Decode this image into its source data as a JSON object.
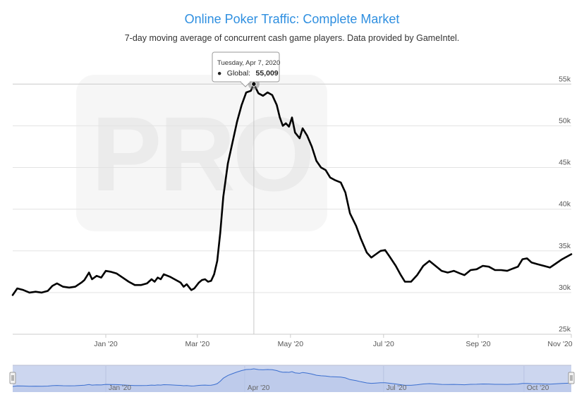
{
  "chart_data": {
    "type": "line",
    "title": "Online Poker Traffic: Complete Market",
    "subtitle": "7-day moving average of concurrent cash game players. Data provided by GameIntel.",
    "watermark": "PRO",
    "ylim": [
      25000,
      59000
    ],
    "y_ticks": [
      {
        "value": 25000,
        "label": "25k"
      },
      {
        "value": 30000,
        "label": "30k"
      },
      {
        "value": 35000,
        "label": "35k"
      },
      {
        "value": 40000,
        "label": "40k"
      },
      {
        "value": 45000,
        "label": "45k"
      },
      {
        "value": 50000,
        "label": "50k"
      },
      {
        "value": 55000,
        "label": "55k"
      }
    ],
    "x_range": [
      "2019-11-01",
      "2020-11-01"
    ],
    "x_ticks": [
      {
        "date": "2020-01-01",
        "label": "Jan '20"
      },
      {
        "date": "2020-03-01",
        "label": "Mar '20"
      },
      {
        "date": "2020-05-01",
        "label": "May '20"
      },
      {
        "date": "2020-07-01",
        "label": "Jul '20"
      },
      {
        "date": "2020-09-01",
        "label": "Sep '20"
      },
      {
        "date": "2020-11-01",
        "label": "Nov '20"
      }
    ],
    "series": [
      {
        "name": "Global",
        "color": "#000000",
        "points": [
          [
            "2019-11-01",
            29700
          ],
          [
            "2019-11-04",
            30500
          ],
          [
            "2019-11-08",
            30300
          ],
          [
            "2019-11-12",
            30000
          ],
          [
            "2019-11-16",
            30100
          ],
          [
            "2019-11-20",
            30000
          ],
          [
            "2019-11-24",
            30200
          ],
          [
            "2019-11-27",
            30800
          ],
          [
            "2019-11-30",
            31100
          ],
          [
            "2019-12-04",
            30700
          ],
          [
            "2019-12-08",
            30600
          ],
          [
            "2019-12-12",
            30700
          ],
          [
            "2019-12-16",
            31200
          ],
          [
            "2019-12-18",
            31500
          ],
          [
            "2019-12-21",
            32400
          ],
          [
            "2019-12-23",
            31600
          ],
          [
            "2019-12-26",
            32000
          ],
          [
            "2019-12-29",
            31800
          ],
          [
            "2020-01-01",
            32600
          ],
          [
            "2020-01-04",
            32500
          ],
          [
            "2020-01-08",
            32300
          ],
          [
            "2020-01-12",
            31800
          ],
          [
            "2020-01-16",
            31300
          ],
          [
            "2020-01-20",
            30900
          ],
          [
            "2020-01-24",
            30900
          ],
          [
            "2020-01-28",
            31100
          ],
          [
            "2020-01-31",
            31600
          ],
          [
            "2020-02-02",
            31300
          ],
          [
            "2020-02-04",
            31800
          ],
          [
            "2020-02-06",
            31600
          ],
          [
            "2020-02-08",
            32200
          ],
          [
            "2020-02-12",
            31900
          ],
          [
            "2020-02-16",
            31500
          ],
          [
            "2020-02-19",
            31200
          ],
          [
            "2020-02-21",
            30700
          ],
          [
            "2020-02-23",
            31000
          ],
          [
            "2020-02-26",
            30300
          ],
          [
            "2020-02-28",
            30500
          ],
          [
            "2020-03-02",
            31200
          ],
          [
            "2020-03-04",
            31500
          ],
          [
            "2020-03-06",
            31600
          ],
          [
            "2020-03-08",
            31300
          ],
          [
            "2020-03-10",
            31400
          ],
          [
            "2020-03-12",
            32200
          ],
          [
            "2020-03-14",
            33800
          ],
          [
            "2020-03-16",
            37200
          ],
          [
            "2020-03-18",
            41500
          ],
          [
            "2020-03-21",
            45500
          ],
          [
            "2020-03-24",
            48000
          ],
          [
            "2020-03-27",
            50500
          ],
          [
            "2020-03-30",
            52500
          ],
          [
            "2020-04-02",
            54000
          ],
          [
            "2020-04-05",
            54200
          ],
          [
            "2020-04-07",
            55009
          ],
          [
            "2020-04-10",
            53900
          ],
          [
            "2020-04-13",
            53600
          ],
          [
            "2020-04-16",
            54000
          ],
          [
            "2020-04-19",
            53700
          ],
          [
            "2020-04-22",
            52500
          ],
          [
            "2020-04-24",
            51000
          ],
          [
            "2020-04-26",
            50000
          ],
          [
            "2020-04-28",
            50300
          ],
          [
            "2020-04-30",
            49900
          ],
          [
            "2020-05-02",
            51000
          ],
          [
            "2020-05-04",
            49200
          ],
          [
            "2020-05-07",
            48500
          ],
          [
            "2020-05-09",
            49700
          ],
          [
            "2020-05-12",
            48800
          ],
          [
            "2020-05-15",
            47500
          ],
          [
            "2020-05-18",
            45800
          ],
          [
            "2020-05-21",
            45000
          ],
          [
            "2020-05-24",
            44700
          ],
          [
            "2020-05-27",
            43800
          ],
          [
            "2020-05-30",
            43500
          ],
          [
            "2020-06-03",
            43200
          ],
          [
            "2020-06-06",
            42000
          ],
          [
            "2020-06-09",
            39500
          ],
          [
            "2020-06-13",
            38000
          ],
          [
            "2020-06-16",
            36500
          ],
          [
            "2020-06-20",
            34800
          ],
          [
            "2020-06-23",
            34200
          ],
          [
            "2020-06-26",
            34600
          ],
          [
            "2020-06-29",
            35000
          ],
          [
            "2020-07-02",
            35100
          ],
          [
            "2020-07-05",
            34300
          ],
          [
            "2020-07-09",
            33200
          ],
          [
            "2020-07-12",
            32200
          ],
          [
            "2020-07-15",
            31300
          ],
          [
            "2020-07-19",
            31300
          ],
          [
            "2020-07-23",
            32100
          ],
          [
            "2020-07-27",
            33200
          ],
          [
            "2020-07-31",
            33800
          ],
          [
            "2020-08-04",
            33200
          ],
          [
            "2020-08-08",
            32600
          ],
          [
            "2020-08-12",
            32400
          ],
          [
            "2020-08-16",
            32600
          ],
          [
            "2020-08-20",
            32300
          ],
          [
            "2020-08-23",
            32100
          ],
          [
            "2020-08-27",
            32700
          ],
          [
            "2020-08-31",
            32800
          ],
          [
            "2020-09-04",
            33200
          ],
          [
            "2020-09-08",
            33100
          ],
          [
            "2020-09-12",
            32700
          ],
          [
            "2020-09-16",
            32700
          ],
          [
            "2020-09-20",
            32600
          ],
          [
            "2020-09-24",
            32900
          ],
          [
            "2020-09-27",
            33100
          ],
          [
            "2020-09-30",
            34000
          ],
          [
            "2020-10-03",
            34100
          ],
          [
            "2020-10-06",
            33600
          ],
          [
            "2020-10-10",
            33400
          ],
          [
            "2020-10-14",
            33200
          ],
          [
            "2020-10-18",
            33000
          ],
          [
            "2020-10-22",
            33500
          ],
          [
            "2020-10-26",
            34000
          ],
          [
            "2020-11-01",
            34600
          ]
        ]
      }
    ],
    "tooltip": {
      "date": "2020-04-07",
      "date_label": "Tuesday, Apr 7, 2020",
      "series_label": "Global:",
      "value_label": "55,009",
      "bullet": "●"
    },
    "navigator": {
      "color": "#3a6ecf",
      "fill": "#ccd6ef",
      "x_ticks": [
        {
          "date": "2020-01-01",
          "label": "Jan '20"
        },
        {
          "date": "2020-04-01",
          "label": "Apr '20"
        },
        {
          "date": "2020-07-01",
          "label": "Jul '20"
        },
        {
          "date": "2020-10-01",
          "label": "Oct '20"
        }
      ]
    },
    "grid": true,
    "legend": "none"
  }
}
